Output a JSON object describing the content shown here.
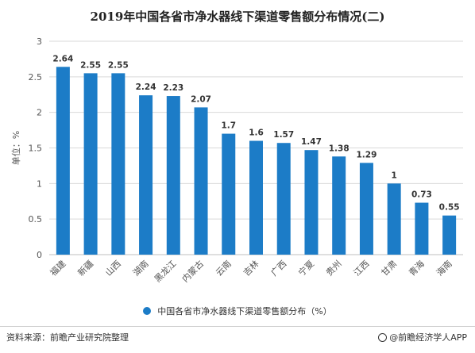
{
  "colors": {
    "bar": "#1c7cc7",
    "grid": "#d9d9d9",
    "axis": "#bfbfbf",
    "text": "#555555"
  },
  "footer": {
    "source": "资料来源：前瞻产业研究院整理",
    "app": "@前瞻经济学人APP"
  },
  "chart_data": {
    "type": "bar",
    "title": "2019年中国各省市净水器线下渠道零售额分布情况(二)",
    "ylabel": "单位：%",
    "ylim": [
      0,
      3
    ],
    "yticks": [
      "0",
      "0.5",
      "1",
      "1.5",
      "2",
      "2.5",
      "3"
    ],
    "grid": true,
    "legend_position": "bottom",
    "categories": [
      "福建",
      "新疆",
      "山西",
      "湖南",
      "黑龙江",
      "内蒙古",
      "云南",
      "吉林",
      "广西",
      "宁夏",
      "贵州",
      "江西",
      "甘肃",
      "青海",
      "海南"
    ],
    "series": [
      {
        "name": "中国各省市净水器线下渠道零售额分布（%）",
        "values": [
          2.64,
          2.55,
          2.55,
          2.24,
          2.23,
          2.07,
          1.7,
          1.6,
          1.57,
          1.47,
          1.38,
          1.29,
          1,
          0.73,
          0.55
        ],
        "labels": [
          "2.64",
          "2.55",
          "2.55",
          "2.24",
          "2.23",
          "2.07",
          "1.7",
          "1.6",
          "1.57",
          "1.47",
          "1.38",
          "1.29",
          "1",
          "0.73",
          "0.55"
        ]
      }
    ]
  }
}
